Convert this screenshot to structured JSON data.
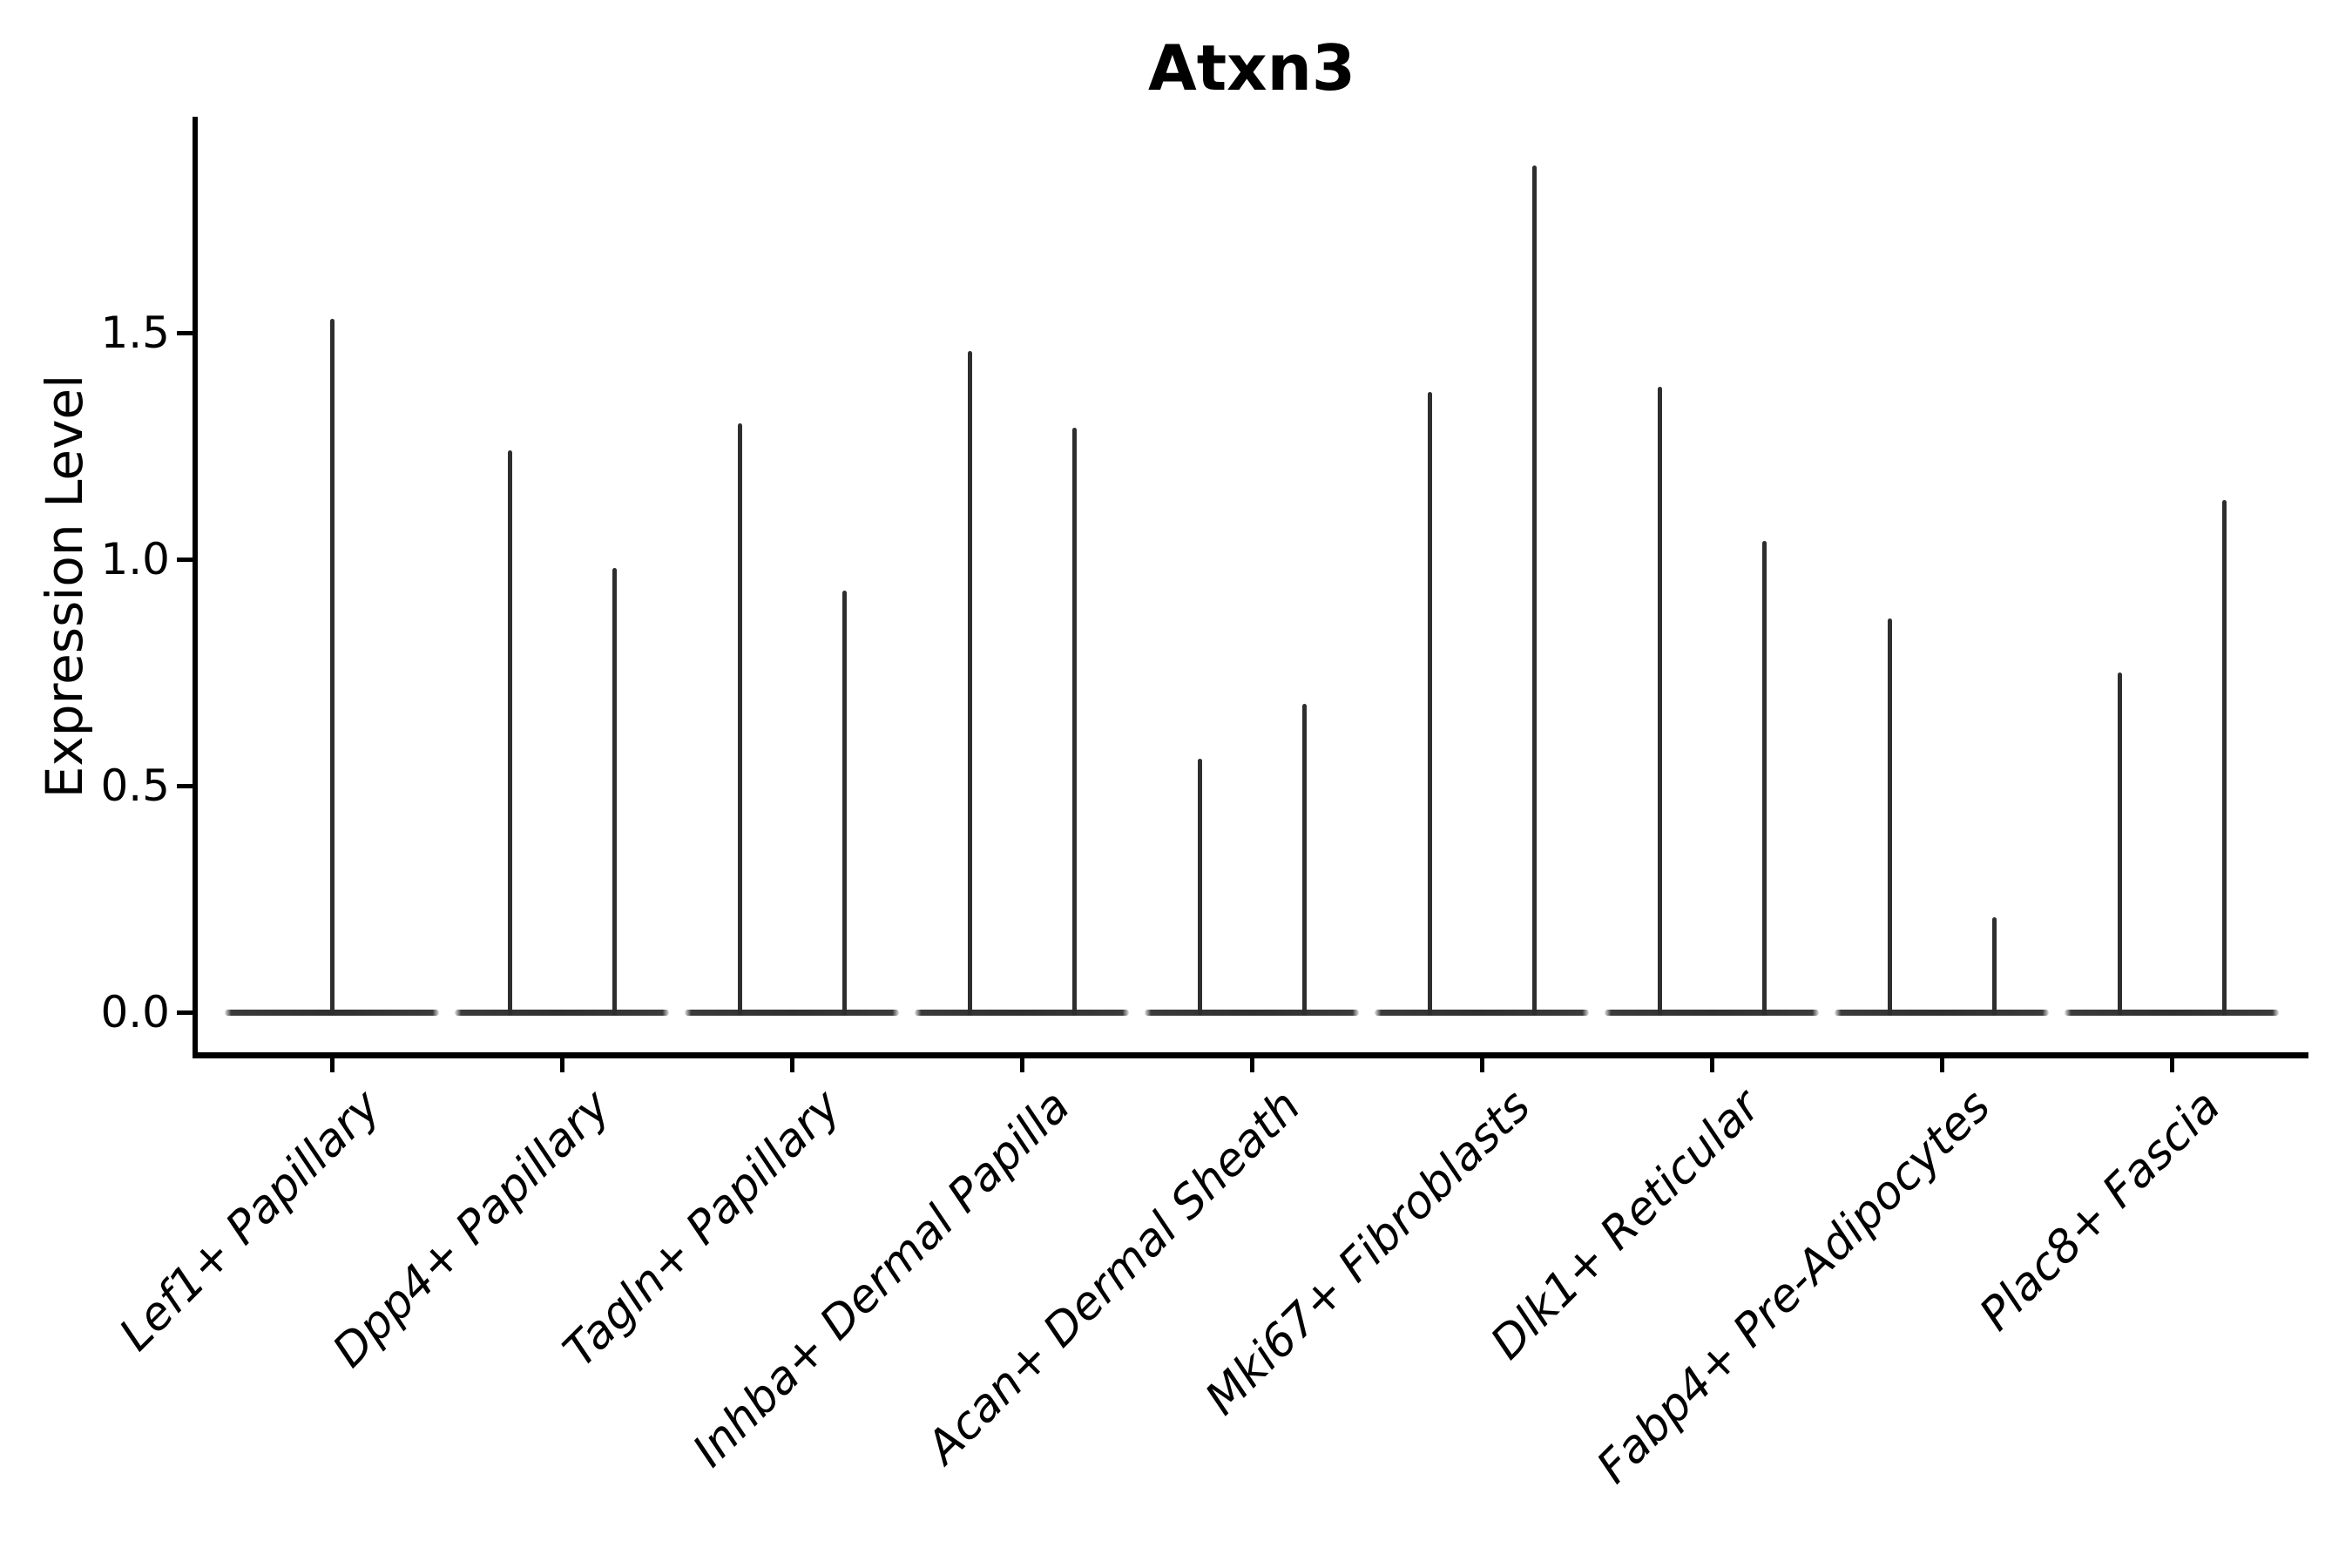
{
  "chart_data": {
    "type": "violin",
    "title": "Atxn3",
    "ylabel": "Expression Level",
    "xlabel": "",
    "ytick_labels": [
      "0.0",
      "0.5",
      "1.0",
      "1.5"
    ],
    "ytick_values": [
      0.0,
      0.5,
      1.0,
      1.5
    ],
    "ylim": [
      -0.1,
      1.98
    ],
    "grid": false,
    "legend": "none",
    "x_label_rotation_deg": -45,
    "x_label_style": "italic",
    "violin_shape": "zero-inflated: wide flat disc at 0 with a thin vertical spike reaching the maximum value",
    "categories": [
      "Lef1+ Papillary",
      "Dpp4+ Papillary",
      "Tagln+ Papillary",
      "Inhba+ Dermal Papilla",
      "Acan+ Dermal Sheath",
      "Mki67+ Fibroblasts",
      "Dlk1+ Reticular",
      "Fabp4+ Pre-Adipocytes",
      "Plac8+ Fascia"
    ],
    "series": [
      {
        "category": "Lef1+ Papillary",
        "violin_max": [
          1.53
        ]
      },
      {
        "category": "Dpp4+ Papillary",
        "violin_max": [
          1.24,
          0.98
        ]
      },
      {
        "category": "Tagln+ Papillary",
        "violin_max": [
          1.3,
          0.93
        ]
      },
      {
        "category": "Inhba+ Dermal Papilla",
        "violin_max": [
          1.46,
          1.29
        ]
      },
      {
        "category": "Acan+ Dermal Sheath",
        "violin_max": [
          0.56,
          0.68
        ]
      },
      {
        "category": "Mki67+ Fibroblasts",
        "violin_max": [
          1.37,
          1.87
        ]
      },
      {
        "category": "Dlk1+ Reticular",
        "violin_max": [
          1.38,
          1.04
        ]
      },
      {
        "category": "Fabp4+ Pre-Adipocytes",
        "violin_max": [
          0.87,
          0.21
        ]
      },
      {
        "category": "Plac8+ Fascia",
        "violin_max": [
          0.75,
          1.13
        ]
      }
    ]
  },
  "colors": {
    "background": "#ffffff",
    "text": "#000000",
    "spine": "#000000",
    "violin_stroke": "#2e2e2e"
  }
}
